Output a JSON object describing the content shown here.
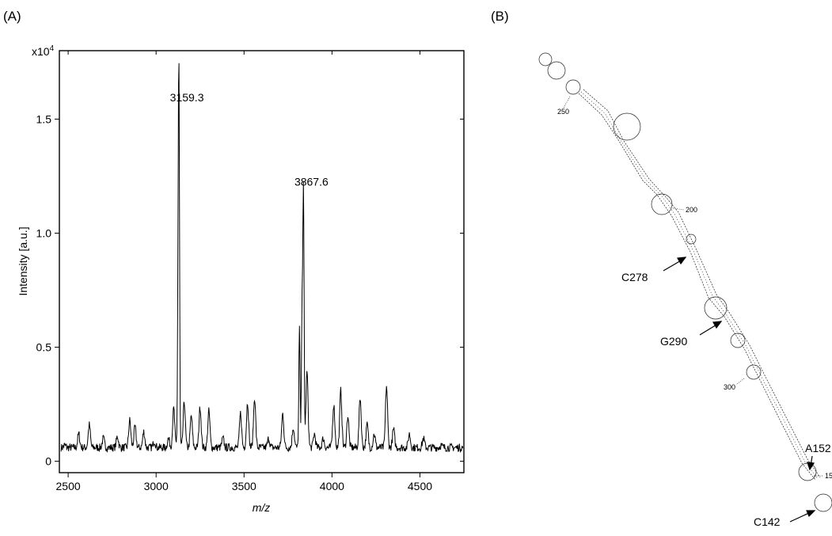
{
  "panel_a_label": "(A)",
  "panel_b_label": "(B)",
  "chart_data": {
    "type": "line",
    "title": "",
    "xlabel": "m/z",
    "ylabel": "Intensity [a.u.]",
    "y_multiplier": "x10",
    "y_multiplier_exp": "4",
    "xlim": [
      2450,
      4750
    ],
    "ylim": [
      -0.05,
      1.8
    ],
    "xticks": [
      2500,
      3000,
      3500,
      4000,
      4500
    ],
    "yticks": [
      0,
      0.5,
      1.0,
      1.5
    ],
    "ytick_labels": [
      "0",
      "0.5",
      "1.0",
      "1.5"
    ],
    "grid": false,
    "peaks": [
      {
        "x": 2480,
        "y": 0.07
      },
      {
        "x": 2560,
        "y": 0.12
      },
      {
        "x": 2620,
        "y": 0.16
      },
      {
        "x": 2700,
        "y": 0.1
      },
      {
        "x": 2780,
        "y": 0.11
      },
      {
        "x": 2850,
        "y": 0.18
      },
      {
        "x": 2880,
        "y": 0.15
      },
      {
        "x": 2930,
        "y": 0.13
      },
      {
        "x": 2990,
        "y": 0.09
      },
      {
        "x": 3070,
        "y": 0.1
      },
      {
        "x": 3100,
        "y": 0.23
      },
      {
        "x": 3125,
        "y": 0.65
      },
      {
        "x": 3130,
        "y": 1.53
      },
      {
        "x": 3160,
        "y": 0.26
      },
      {
        "x": 3200,
        "y": 0.2
      },
      {
        "x": 3250,
        "y": 0.24
      },
      {
        "x": 3300,
        "y": 0.22
      },
      {
        "x": 3380,
        "y": 0.1
      },
      {
        "x": 3480,
        "y": 0.21
      },
      {
        "x": 3520,
        "y": 0.26
      },
      {
        "x": 3560,
        "y": 0.28
      },
      {
        "x": 3640,
        "y": 0.1
      },
      {
        "x": 3720,
        "y": 0.21
      },
      {
        "x": 3780,
        "y": 0.15
      },
      {
        "x": 3815,
        "y": 0.58
      },
      {
        "x": 3830,
        "y": 0.68
      },
      {
        "x": 3838,
        "y": 1.16
      },
      {
        "x": 3858,
        "y": 0.39
      },
      {
        "x": 3900,
        "y": 0.12
      },
      {
        "x": 3950,
        "y": 0.1
      },
      {
        "x": 4010,
        "y": 0.25
      },
      {
        "x": 4050,
        "y": 0.31
      },
      {
        "x": 4090,
        "y": 0.2
      },
      {
        "x": 4160,
        "y": 0.28
      },
      {
        "x": 4200,
        "y": 0.16
      },
      {
        "x": 4240,
        "y": 0.12
      },
      {
        "x": 4310,
        "y": 0.33
      },
      {
        "x": 4350,
        "y": 0.14
      },
      {
        "x": 4440,
        "y": 0.12
      },
      {
        "x": 4520,
        "y": 0.1
      },
      {
        "x": 4620,
        "y": 0.07
      },
      {
        "x": 4700,
        "y": 0.06
      }
    ],
    "baseline": 0.06,
    "annotations": [
      {
        "text": "3159.3",
        "x": 3130,
        "y": 1.53
      },
      {
        "text": "3867.6",
        "x": 3838,
        "y": 1.16
      }
    ]
  },
  "structure": {
    "position_labels": [
      "250",
      "200",
      "300",
      "15"
    ],
    "nucleotide_annotations": [
      "C278",
      "G290",
      "A152",
      "C142"
    ]
  }
}
